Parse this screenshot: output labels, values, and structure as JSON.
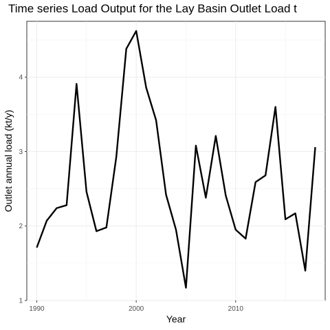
{
  "chart_data": {
    "type": "line",
    "title": "Time series Load Output for the Lay Basin Outlet Load t",
    "xlabel": "Year",
    "ylabel": "Outlet annual load (kt/y)",
    "xlim": [
      1989,
      2019
    ],
    "ylim": [
      1,
      4.75
    ],
    "x_ticks": [
      1990,
      2000,
      2010
    ],
    "y_ticks": [
      1,
      2,
      3,
      4
    ],
    "grid": true,
    "line_color": "#000000",
    "series": [
      {
        "x": [
          1990,
          1991,
          1992,
          1993,
          1994,
          1995,
          1996,
          1997,
          1998,
          1999,
          2000,
          2001,
          2002,
          2003,
          2004,
          2005,
          2006,
          2007,
          2008,
          2009,
          2010,
          2011,
          2012,
          2013,
          2014,
          2015,
          2016,
          2017,
          2018
        ],
        "values": [
          1.71,
          2.07,
          2.24,
          2.28,
          3.91,
          2.46,
          1.93,
          1.98,
          2.93,
          4.38,
          4.62,
          3.86,
          3.42,
          2.42,
          1.95,
          1.17,
          3.08,
          2.38,
          3.21,
          2.41,
          1.95,
          1.83,
          2.59,
          2.68,
          3.6,
          2.09,
          2.17,
          1.4,
          3.06
        ]
      }
    ]
  }
}
